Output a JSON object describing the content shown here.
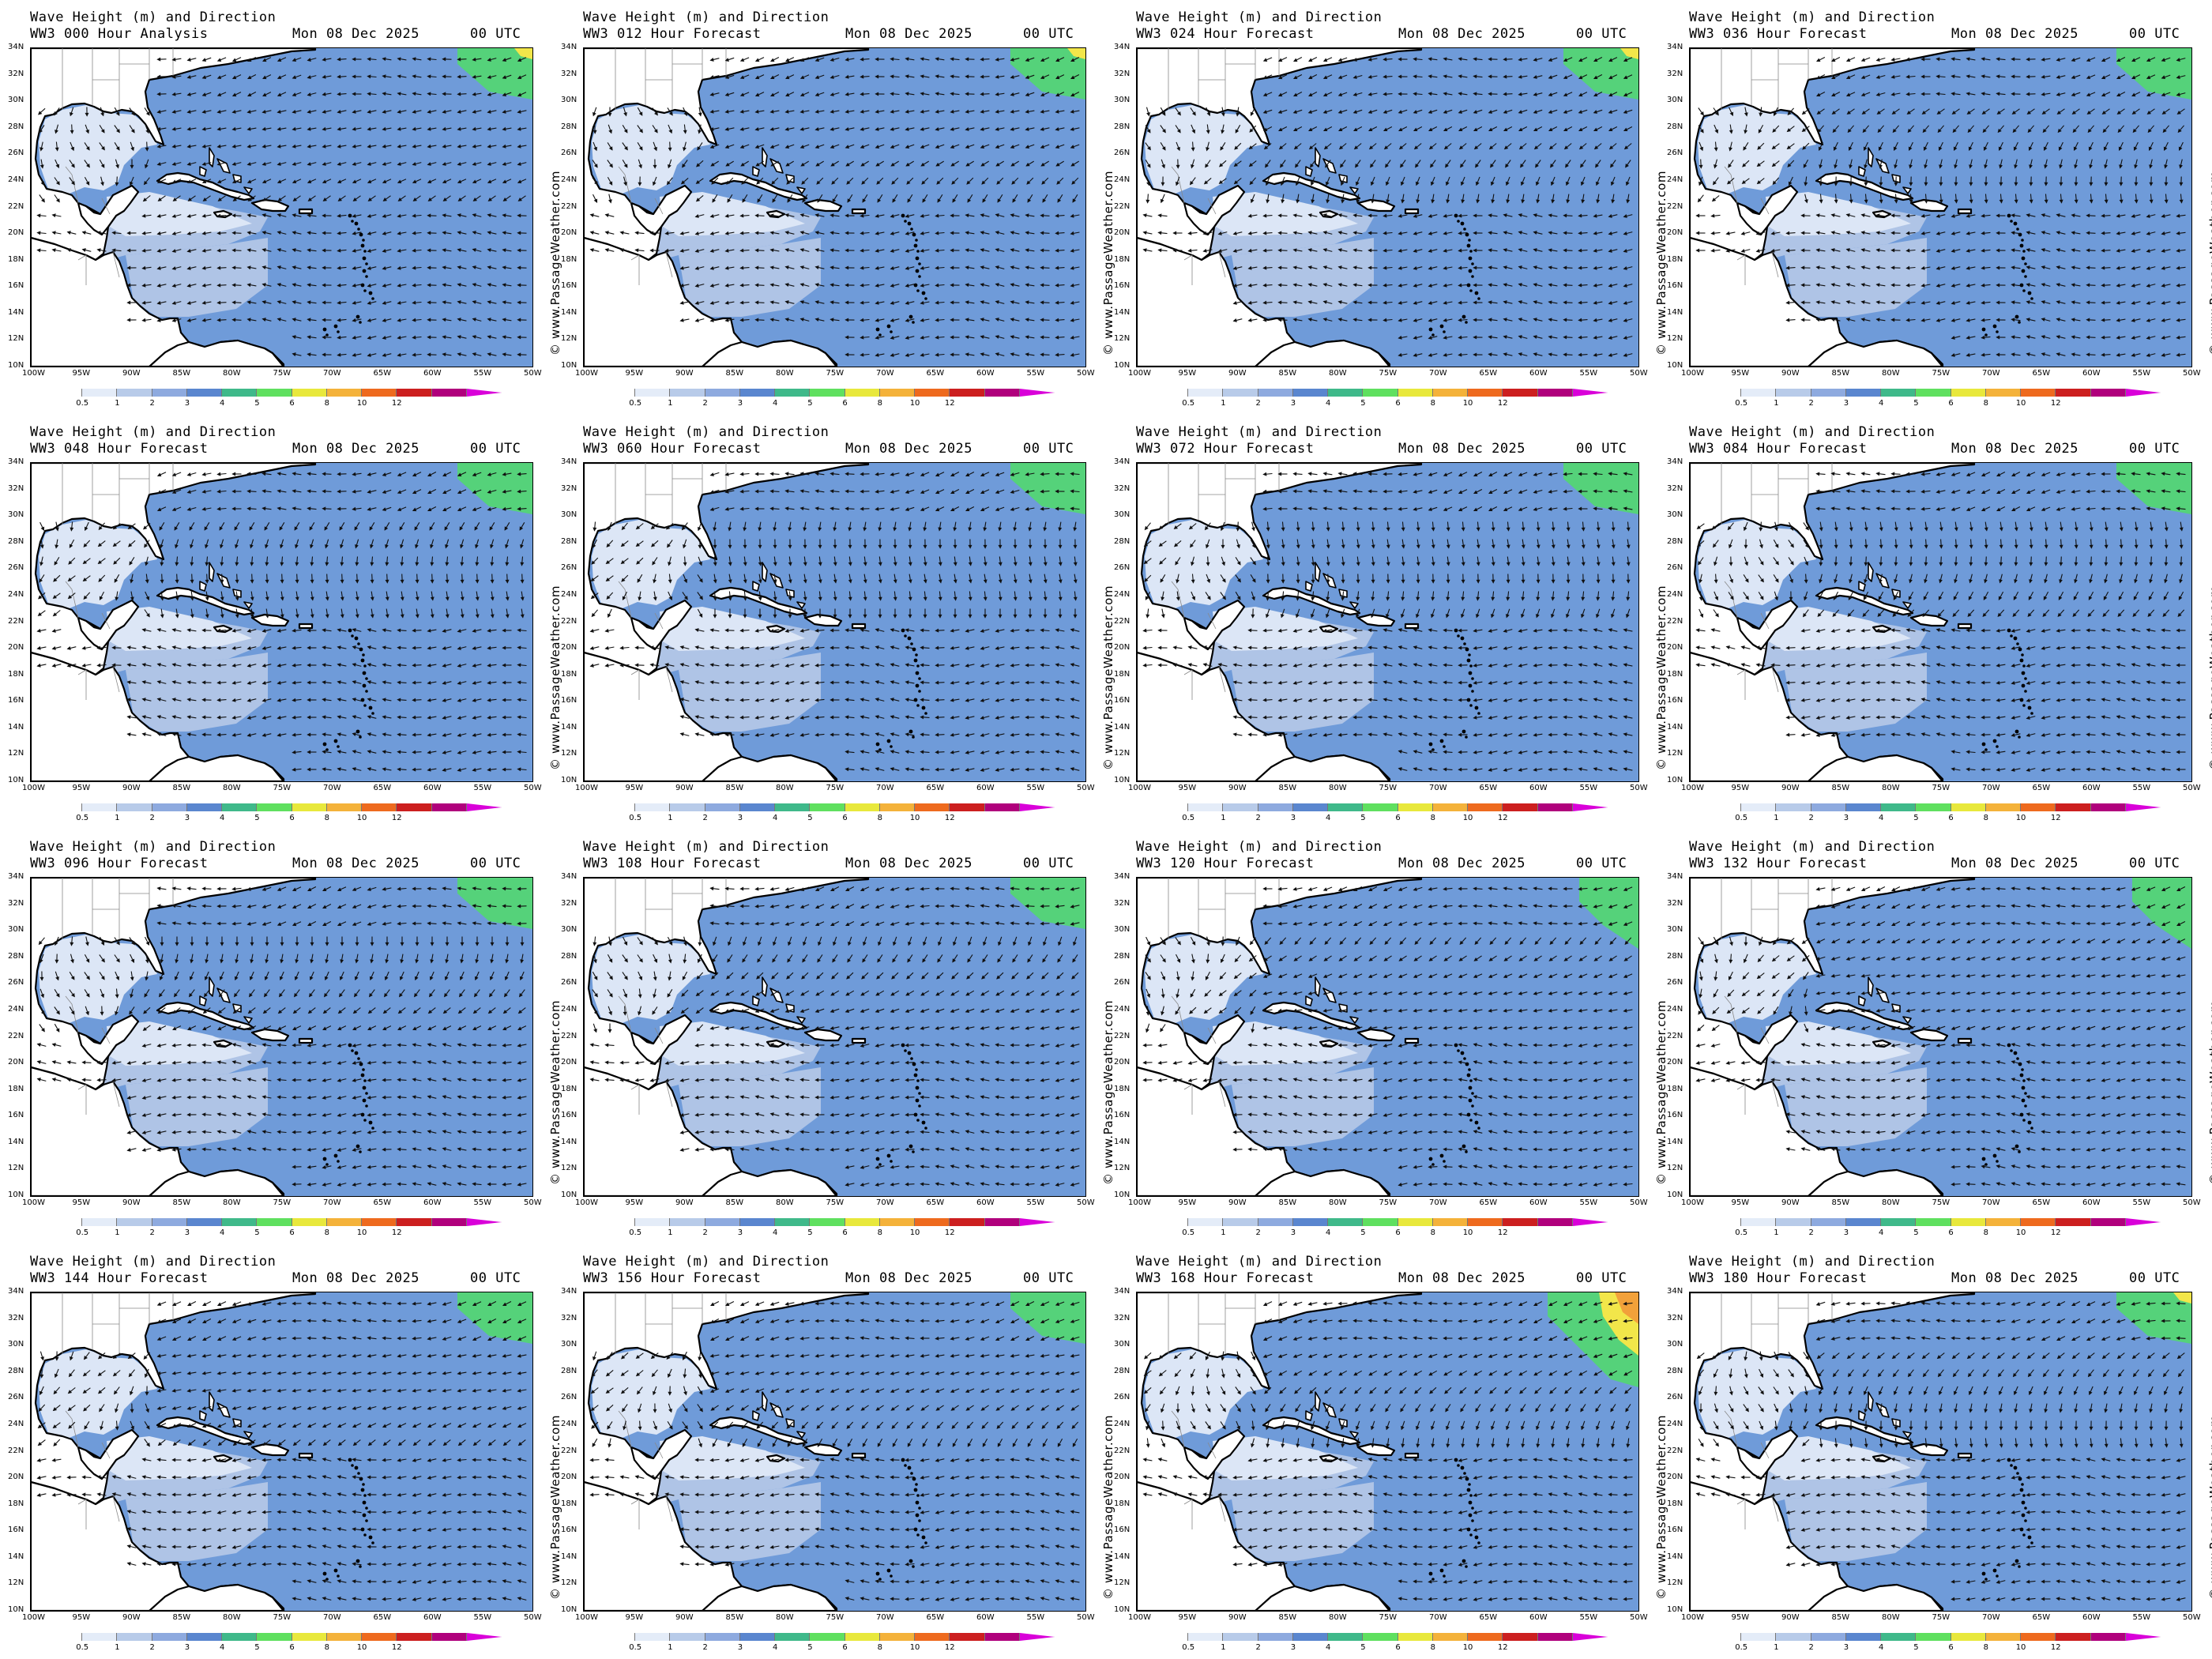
{
  "panel_title_line1": "Wave Height (m) and Direction",
  "panel_date": "Mon 08 Dec 2025",
  "panel_utc": "00 UTC",
  "watermark": "© www.PassageWeather.com",
  "lat_labels": [
    "34N",
    "32N",
    "30N",
    "28N",
    "26N",
    "24N",
    "22N",
    "20N",
    "18N",
    "16N",
    "14N",
    "12N",
    "10N"
  ],
  "lon_labels": [
    "100W",
    "95W",
    "90W",
    "85W",
    "80W",
    "75W",
    "70W",
    "65W",
    "60W",
    "55W",
    "50W"
  ],
  "colorbar": {
    "labels": [
      "0.5",
      "1",
      "2",
      "3",
      "4",
      "5",
      "6",
      "8",
      "10",
      "12"
    ],
    "colors": [
      "#ffffff",
      "#e4ecf8",
      "#b8cbe9",
      "#8eaadf",
      "#5a86cf",
      "#3fb98a",
      "#5fe05f",
      "#e8e83c",
      "#f4b23a",
      "#ee6a1e",
      "#cc1f1f",
      "#b0007c",
      "#d900d9"
    ]
  },
  "colors": {
    "land": "#ffffff",
    "sea_low": "#dce6f6",
    "sea_mid": "#afc4e6",
    "sea_high": "#6f9bd9",
    "swell_green": "#55d27a",
    "swell_yellow": "#f2e64a",
    "swell_orange": "#f2a13a"
  },
  "panels": [
    {
      "title2": "WW3 000 Hour Analysis"
    },
    {
      "title2": "WW3 012 Hour Forecast"
    },
    {
      "title2": "WW3 024 Hour Forecast"
    },
    {
      "title2": "WW3 036 Hour Forecast"
    },
    {
      "title2": "WW3 048 Hour Forecast"
    },
    {
      "title2": "WW3 060 Hour Forecast"
    },
    {
      "title2": "WW3 072 Hour Forecast"
    },
    {
      "title2": "WW3 084 Hour Forecast"
    },
    {
      "title2": "WW3 096 Hour Forecast"
    },
    {
      "title2": "WW3 108 Hour Forecast"
    },
    {
      "title2": "WW3 120 Hour Forecast"
    },
    {
      "title2": "WW3 132 Hour Forecast"
    },
    {
      "title2": "WW3 144 Hour Forecast"
    },
    {
      "title2": "WW3 156 Hour Forecast"
    },
    {
      "title2": "WW3 168 Hour Forecast"
    },
    {
      "title2": "WW3 180 Hour Forecast"
    }
  ]
}
